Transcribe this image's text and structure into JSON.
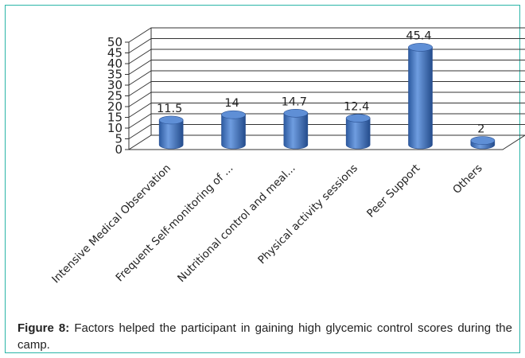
{
  "chart_data": {
    "type": "bar",
    "categories": [
      "Intensive Medical Observation",
      "Frequent Self-monitoring of ...",
      "Nutritional control and meal...",
      "Physical activity sessions",
      "Peer Support",
      "Others"
    ],
    "values": [
      11.5,
      14,
      14.7,
      12.4,
      45.4,
      2
    ],
    "data_labels": [
      "11.5",
      "14",
      "14.7",
      "12.4",
      "45.4",
      "2"
    ],
    "ylim": [
      0,
      50
    ],
    "yticks": [
      0,
      5,
      10,
      15,
      20,
      25,
      30,
      35,
      40,
      45,
      50
    ],
    "grid": true,
    "bar_color": "#4a7ec9",
    "title": "",
    "xlabel": "",
    "ylabel": ""
  },
  "caption": {
    "label": "Figure 8:",
    "text": " Factors helped the participant in gaining high glycemic control scores during the camp."
  }
}
